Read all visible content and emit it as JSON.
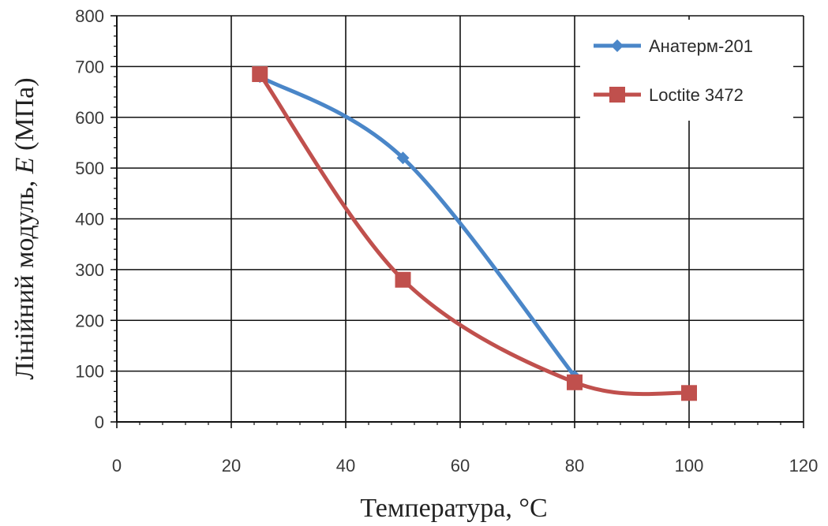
{
  "chart_data": {
    "type": "line",
    "title": "",
    "xlabel": "Температура, °C",
    "ylabel_prefix": "Лінійний модуль, ",
    "ylabel_symbol": "E",
    "ylabel_suffix": " (МПа)",
    "xlim": [
      0,
      120
    ],
    "ylim": [
      0,
      800
    ],
    "xticks": [
      0,
      20,
      40,
      60,
      80,
      100,
      120
    ],
    "yticks": [
      0,
      100,
      200,
      300,
      400,
      500,
      600,
      700,
      800
    ],
    "grid": true,
    "smooth": true,
    "legend_position": "top-right",
    "series": [
      {
        "name": "Анатерм-201",
        "color": "#4a86c8",
        "marker": "diamond",
        "x": [
          25,
          50,
          80
        ],
        "y": [
          680,
          520,
          90
        ]
      },
      {
        "name": "Loctite 3472",
        "color": "#c0504d",
        "marker": "square",
        "x": [
          25,
          50,
          80,
          100
        ],
        "y": [
          685,
          280,
          78,
          57
        ]
      }
    ]
  }
}
